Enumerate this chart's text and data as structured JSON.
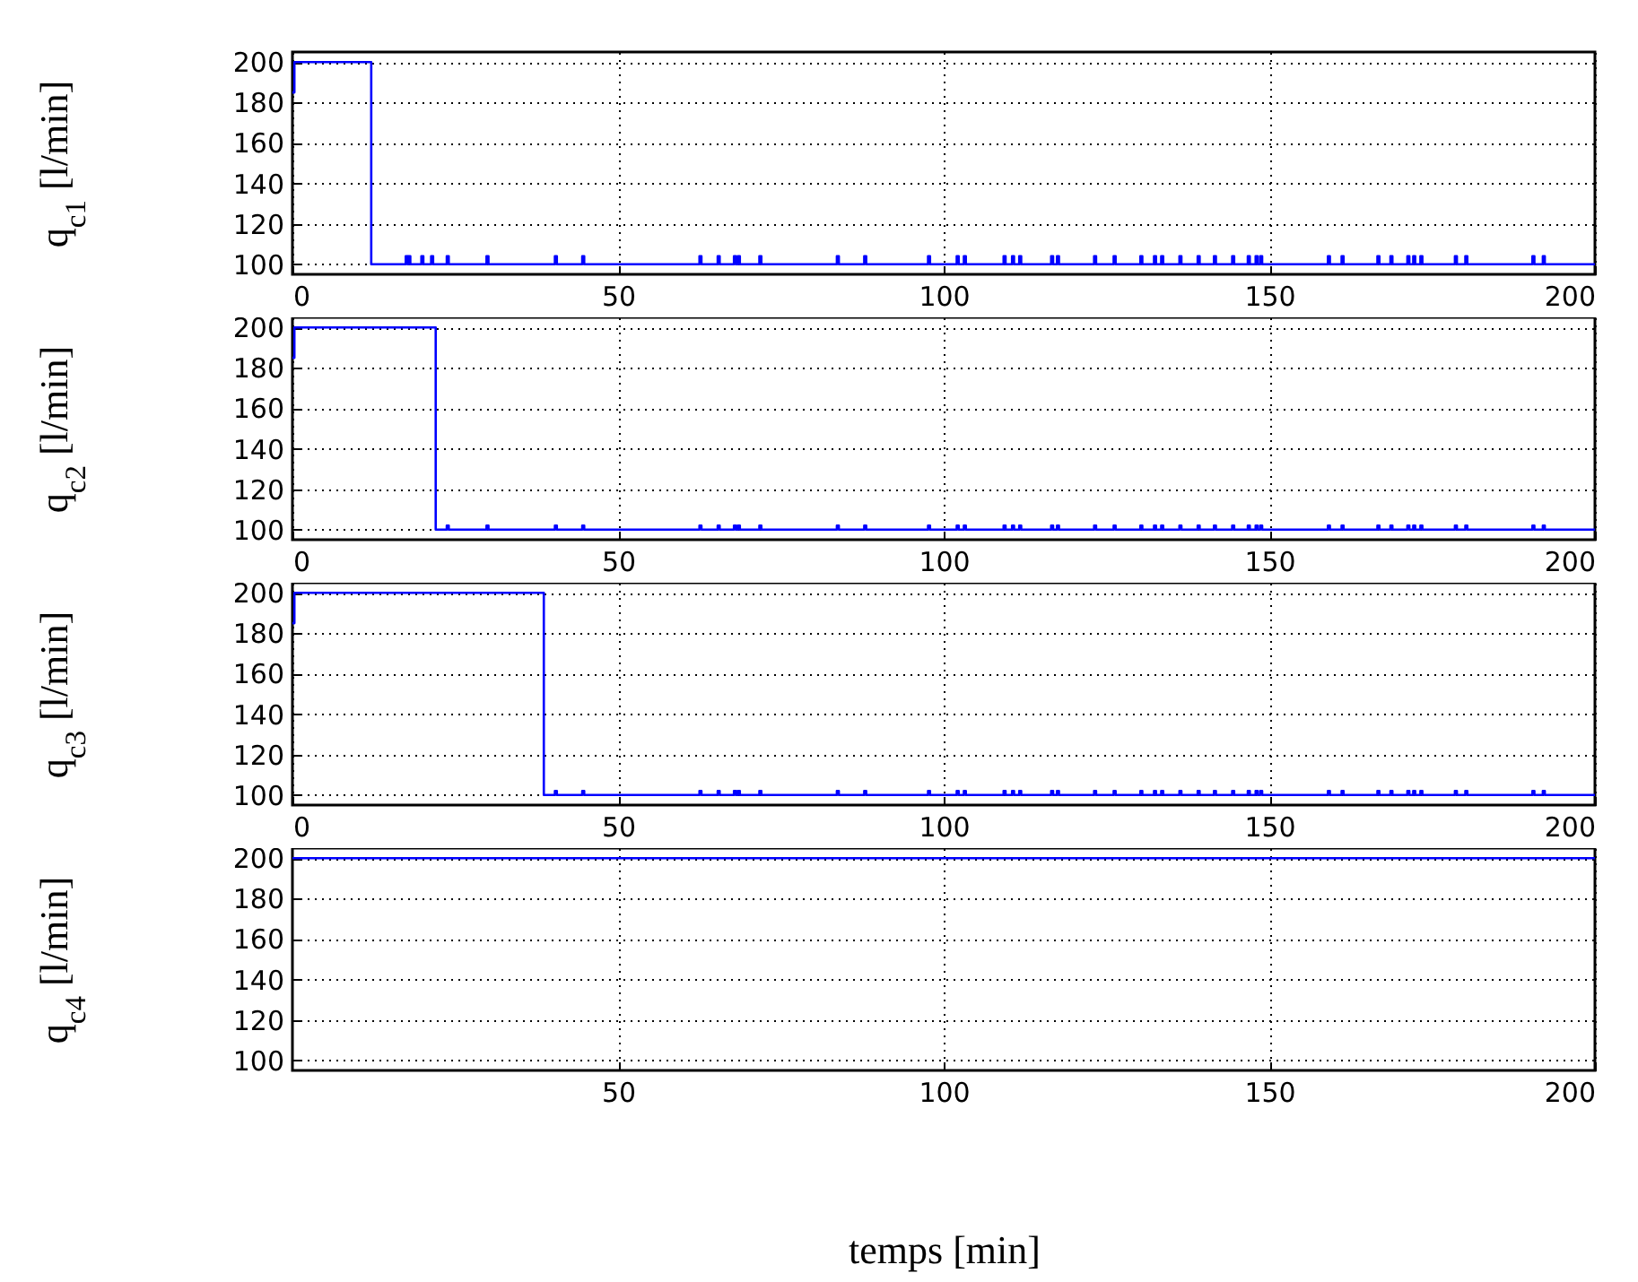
{
  "chart_data": [
    {
      "type": "step",
      "ylabel": "q$_{c1}$ [l/min]",
      "color": "#0000ff",
      "grid": true,
      "xlim": [
        0,
        200
      ],
      "ylim": [
        95,
        205
      ],
      "xticks": [
        0,
        50,
        100,
        150,
        200
      ],
      "yticks": [
        100,
        120,
        140,
        160,
        180,
        200
      ],
      "x": [
        0,
        0.3,
        12.1,
        17.4,
        17.7,
        17.8,
        18.1,
        19.8,
        20.1,
        21.3,
        21.6,
        23.7,
        24,
        29.8,
        30.1,
        40.3,
        40.6,
        44.5,
        44.8,
        62.5,
        62.8,
        65.3,
        65.6,
        67.8,
        68.1,
        68.4,
        68.7,
        71.7,
        72,
        83.6,
        83.9,
        87.8,
        88.1,
        97.6,
        97.9,
        102,
        102.3,
        103.1,
        103.4,
        109.2,
        109.5,
        110.5,
        110.8,
        111.6,
        111.9,
        116.5,
        116.8,
        117.4,
        117.7,
        123.1,
        123.4,
        126.1,
        126.4,
        130.2,
        130.5,
        132.3,
        132.6,
        133.4,
        133.7,
        136.2,
        136.5,
        139,
        139.3,
        141.5,
        141.8,
        144.3,
        144.6,
        146.7,
        147,
        147.9,
        148.2,
        148.6,
        148.9,
        159,
        159.3,
        161.1,
        161.4,
        166.6,
        166.9,
        168.6,
        168.9,
        171.2,
        171.5,
        172.1,
        172.4,
        173.2,
        173.5,
        178.5,
        178.8,
        180.1,
        180.4,
        190.4,
        190.7,
        192,
        192.3,
        200
      ],
      "values": [
        185,
        200,
        100,
        104,
        100,
        104,
        100,
        104,
        100,
        104,
        100,
        104,
        100,
        104,
        100,
        104,
        100,
        104,
        100,
        104,
        100,
        104,
        100,
        104,
        100,
        104,
        100,
        104,
        100,
        104,
        100,
        104,
        100,
        104,
        100,
        104,
        100,
        104,
        100,
        104,
        100,
        104,
        100,
        104,
        100,
        104,
        100,
        104,
        100,
        104,
        100,
        104,
        100,
        104,
        100,
        104,
        100,
        104,
        100,
        104,
        100,
        104,
        100,
        104,
        100,
        104,
        100,
        104,
        100,
        104,
        100,
        104,
        100,
        104,
        100,
        104,
        100,
        104,
        100,
        104,
        100,
        104,
        100,
        104,
        100,
        104,
        100,
        104,
        100,
        104,
        100,
        104,
        100,
        104,
        100,
        100
      ]
    },
    {
      "type": "step",
      "ylabel": "q$_{c2}$ [l/min]",
      "color": "#0000ff",
      "grid": true,
      "xlim": [
        0,
        200
      ],
      "ylim": [
        95,
        205
      ],
      "xticks": [
        0,
        50,
        100,
        150,
        200
      ],
      "yticks": [
        100,
        120,
        140,
        160,
        180,
        200
      ],
      "x": [
        0,
        0.3,
        22,
        23.7,
        24,
        29.8,
        30.1,
        40.3,
        40.6,
        44.5,
        44.8,
        62.5,
        62.8,
        65.3,
        65.6,
        67.8,
        68.1,
        68.4,
        68.7,
        71.7,
        72,
        83.6,
        83.9,
        87.8,
        88.1,
        97.6,
        97.9,
        102,
        102.3,
        103.1,
        103.4,
        109.2,
        109.5,
        110.5,
        110.8,
        111.6,
        111.9,
        116.5,
        116.8,
        117.4,
        117.7,
        123.1,
        123.4,
        126.1,
        126.4,
        130.2,
        130.5,
        132.3,
        132.6,
        133.4,
        133.7,
        136.2,
        136.5,
        139,
        139.3,
        141.5,
        141.8,
        144.3,
        144.6,
        146.7,
        147,
        147.9,
        148.2,
        148.6,
        148.9,
        159,
        159.3,
        161.1,
        161.4,
        166.6,
        166.9,
        168.6,
        168.9,
        171.2,
        171.5,
        172.1,
        172.4,
        173.2,
        173.5,
        178.5,
        178.8,
        180.1,
        180.4,
        190.4,
        190.7,
        192,
        192.3,
        200
      ],
      "values": [
        185,
        200,
        100,
        102,
        100,
        102,
        100,
        102,
        100,
        102,
        100,
        102,
        100,
        102,
        100,
        102,
        100,
        102,
        100,
        102,
        100,
        102,
        100,
        102,
        100,
        102,
        100,
        102,
        100,
        102,
        100,
        102,
        100,
        102,
        100,
        102,
        100,
        102,
        100,
        102,
        100,
        102,
        100,
        102,
        100,
        102,
        100,
        102,
        100,
        102,
        100,
        102,
        100,
        102,
        100,
        102,
        100,
        102,
        100,
        102,
        100,
        102,
        100,
        102,
        100,
        102,
        100,
        102,
        100,
        102,
        100,
        102,
        100,
        102,
        100,
        102,
        100,
        102,
        100,
        102,
        100,
        102,
        100,
        102,
        100,
        102,
        100,
        100
      ]
    },
    {
      "type": "step",
      "ylabel": "q$_{c3}$ [l/min]",
      "color": "#0000ff",
      "grid": true,
      "xlim": [
        0,
        200
      ],
      "ylim": [
        95,
        205
      ],
      "xticks": [
        0,
        50,
        100,
        150,
        200
      ],
      "yticks": [
        100,
        120,
        140,
        160,
        180,
        200
      ],
      "x": [
        0,
        0.3,
        38.6,
        40.3,
        40.6,
        44.5,
        44.8,
        62.5,
        62.8,
        65.3,
        65.6,
        67.8,
        68.1,
        68.4,
        68.7,
        71.7,
        72,
        83.6,
        83.9,
        87.8,
        88.1,
        97.6,
        97.9,
        102,
        102.3,
        103.1,
        103.4,
        109.2,
        109.5,
        110.5,
        110.8,
        111.6,
        111.9,
        116.5,
        116.8,
        117.4,
        117.7,
        123.1,
        123.4,
        126.1,
        126.4,
        130.2,
        130.5,
        132.3,
        132.6,
        133.4,
        133.7,
        136.2,
        136.5,
        139,
        139.3,
        141.5,
        141.8,
        144.3,
        144.6,
        146.7,
        147,
        147.9,
        148.2,
        148.6,
        148.9,
        159,
        159.3,
        161.1,
        161.4,
        166.6,
        166.9,
        168.6,
        168.9,
        171.2,
        171.5,
        172.1,
        172.4,
        173.2,
        173.5,
        178.5,
        178.8,
        180.1,
        180.4,
        190.4,
        190.7,
        192,
        192.3,
        200
      ],
      "values": [
        185,
        200,
        100,
        102,
        100,
        102,
        100,
        102,
        100,
        102,
        100,
        102,
        100,
        102,
        100,
        102,
        100,
        102,
        100,
        102,
        100,
        102,
        100,
        102,
        100,
        102,
        100,
        102,
        100,
        102,
        100,
        102,
        100,
        102,
        100,
        102,
        100,
        102,
        100,
        102,
        100,
        102,
        100,
        102,
        100,
        102,
        100,
        102,
        100,
        102,
        100,
        102,
        100,
        102,
        100,
        102,
        100,
        102,
        100,
        102,
        100,
        102,
        100,
        102,
        100,
        102,
        100,
        102,
        100,
        102,
        100,
        102,
        100,
        102,
        100,
        102,
        100,
        102,
        100,
        102,
        100,
        102,
        100,
        100
      ]
    },
    {
      "type": "step",
      "ylabel": "q$_{c4}$ [l/min]",
      "xlabel": "temps [min]",
      "color": "#0000ff",
      "grid": true,
      "xlim": [
        0,
        200
      ],
      "ylim": [
        95,
        205
      ],
      "xticks": [
        50,
        100,
        150,
        200
      ],
      "yticks": [
        100,
        120,
        140,
        160,
        180,
        200
      ],
      "x": [
        0,
        200
      ],
      "values": [
        200,
        200
      ]
    }
  ]
}
